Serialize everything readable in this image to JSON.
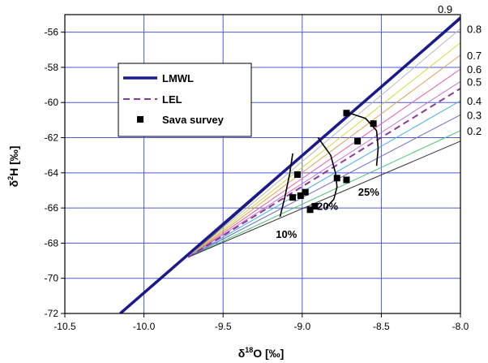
{
  "chart_data": {
    "type": "line",
    "xlabel_base": "δ",
    "xlabel_sup": "18",
    "xlabel_rest": "O [‰]",
    "ylabel_base": "δ",
    "ylabel_sup": "2",
    "ylabel_rest": "H [‰]",
    "xlim": [
      -10.5,
      -8.0
    ],
    "ylim": [
      -72,
      -55
    ],
    "x_ticks": [
      -10.5,
      -10.0,
      -9.5,
      -9.0,
      -8.5,
      -8.0
    ],
    "x_tick_labels": [
      "-10.5",
      "-10.0",
      "-9.5",
      "-9.0",
      "-8.5",
      "-8.0"
    ],
    "y_ticks": [
      -56,
      -58,
      -60,
      -62,
      -64,
      -66,
      -68,
      -70,
      -72
    ],
    "y_tick_labels": [
      "-56",
      "-58",
      "-60",
      "-62",
      "-64",
      "-66",
      "-68",
      "-70",
      "-72"
    ],
    "grid": true,
    "legend_position": "upper-left",
    "legend": [
      {
        "label": "LMWL",
        "style": "solid-thick",
        "color": "#1a1a8c"
      },
      {
        "label": "LEL",
        "style": "dashed",
        "color": "#8a3a9a"
      },
      {
        "label": "Sava survey",
        "style": "square-marker",
        "color": "#000000"
      }
    ],
    "lmwl": {
      "x": [
        -10.15,
        -8.0
      ],
      "y": [
        -72.0,
        -55.2
      ],
      "color": "#1a1a8c"
    },
    "lel": {
      "x": [
        -9.72,
        -8.0
      ],
      "y": [
        -68.8,
        -59.2
      ],
      "color": "#8a3a9a"
    },
    "fan_origin": {
      "x": -9.72,
      "y": -68.8
    },
    "fan_lines": [
      {
        "label": "0.9",
        "y_end": -55.1,
        "color": "#555555"
      },
      {
        "label": "0.8",
        "y_end": -55.8,
        "color": "#b8b8b8"
      },
      {
        "label": "",
        "y_end": -56.6,
        "color": "#d6d640"
      },
      {
        "label": "0.7",
        "y_end": -57.3,
        "color": "#e0a050"
      },
      {
        "label": "0.6",
        "y_end": -58.1,
        "color": "#e85aa8"
      },
      {
        "label": "0.5",
        "y_end": -58.8,
        "color": "#c070d0"
      },
      {
        "label": "0.4",
        "y_end": -59.9,
        "color": "#4aaee8"
      },
      {
        "label": "0.3",
        "y_end": -60.7,
        "color": "#6a6acc"
      },
      {
        "label": "0.2",
        "y_end": -61.6,
        "color": "#48c070"
      },
      {
        "label": "",
        "y_end": -62.2,
        "color": "#333333"
      }
    ],
    "points": [
      {
        "x": -8.72,
        "y": -60.6
      },
      {
        "x": -8.55,
        "y": -61.2
      },
      {
        "x": -8.65,
        "y": -62.2
      },
      {
        "x": -9.03,
        "y": -64.1
      },
      {
        "x": -8.78,
        "y": -64.3
      },
      {
        "x": -8.72,
        "y": -64.4
      },
      {
        "x": -8.98,
        "y": -65.1
      },
      {
        "x": -9.01,
        "y": -65.3
      },
      {
        "x": -9.06,
        "y": -65.4
      },
      {
        "x": -8.92,
        "y": -65.9
      },
      {
        "x": -8.95,
        "y": -66.1
      }
    ],
    "evaporation_curves": [
      {
        "label": "10%",
        "label_x": -9.1,
        "label_y": -67.7,
        "x": [
          -9.06,
          -9.08,
          -9.11,
          -9.14
        ],
        "y": [
          -62.9,
          -64.1,
          -65.4,
          -66.5
        ]
      },
      {
        "label": "20%",
        "label_x": -8.84,
        "label_y": -66.1,
        "x": [
          -8.9,
          -8.82,
          -8.79,
          -8.78,
          -8.8,
          -8.85
        ],
        "y": [
          -62.0,
          -63.0,
          -64.0,
          -64.8,
          -65.5,
          -66.0
        ]
      },
      {
        "label": "25%",
        "label_x": -8.58,
        "label_y": -65.3,
        "x": [
          -8.72,
          -8.6,
          -8.53,
          -8.52,
          -8.53
        ],
        "y": [
          -60.55,
          -60.9,
          -61.6,
          -62.6,
          -63.6
        ]
      }
    ]
  }
}
